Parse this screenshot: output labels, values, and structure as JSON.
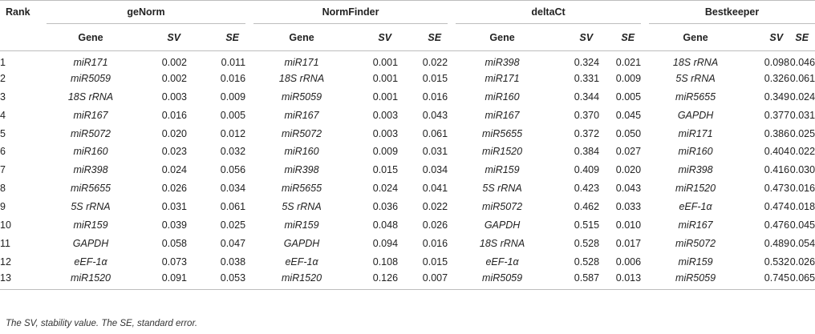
{
  "table": {
    "rank_header": "Rank",
    "methods": [
      {
        "name": "geNorm",
        "cols": [
          "Gene",
          "SV",
          "SE"
        ]
      },
      {
        "name": "NormFinder",
        "cols": [
          "Gene",
          "SV",
          "SE"
        ]
      },
      {
        "name": "deltaCt",
        "cols": [
          "Gene",
          "SV",
          "SE"
        ]
      },
      {
        "name": "Bestkeeper",
        "cols": [
          "Gene",
          "SV",
          "SE"
        ]
      }
    ],
    "rows": [
      [
        "1",
        "miR171",
        "0.002",
        "0.011",
        "miR171",
        "0.001",
        "0.022",
        "miR398",
        "0.324",
        "0.021",
        "18S rRNA",
        "0.098",
        "0.046"
      ],
      [
        "2",
        "miR5059",
        "0.002",
        "0.016",
        "18S rRNA",
        "0.001",
        "0.015",
        "miR171",
        "0.331",
        "0.009",
        "5S rRNA",
        "0.326",
        "0.061"
      ],
      [
        "3",
        "18S rRNA",
        "0.003",
        "0.009",
        "miR5059",
        "0.001",
        "0.016",
        "miR160",
        "0.344",
        "0.005",
        "miR5655",
        "0.349",
        "0.024"
      ],
      [
        "4",
        "miR167",
        "0.016",
        "0.005",
        "miR167",
        "0.003",
        "0.043",
        "miR167",
        "0.370",
        "0.045",
        "GAPDH",
        "0.377",
        "0.031"
      ],
      [
        "5",
        "miR5072",
        "0.020",
        "0.012",
        "miR5072",
        "0.003",
        "0.061",
        "miR5655",
        "0.372",
        "0.050",
        "miR171",
        "0.386",
        "0.025"
      ],
      [
        "6",
        "miR160",
        "0.023",
        "0.032",
        "miR160",
        "0.009",
        "0.031",
        "miR1520",
        "0.384",
        "0.027",
        "miR160",
        "0.404",
        "0.022"
      ],
      [
        "7",
        "miR398",
        "0.024",
        "0.056",
        "miR398",
        "0.015",
        "0.034",
        "miR159",
        "0.409",
        "0.020",
        "miR398",
        "0.416",
        "0.030"
      ],
      [
        "8",
        "miR5655",
        "0.026",
        "0.034",
        "miR5655",
        "0.024",
        "0.041",
        "5S rRNA",
        "0.423",
        "0.043",
        "miR1520",
        "0.473",
        "0.016"
      ],
      [
        "9",
        "5S rRNA",
        "0.031",
        "0.061",
        "5S rRNA",
        "0.036",
        "0.022",
        "miR5072",
        "0.462",
        "0.033",
        "eEF-1α",
        "0.474",
        "0.018"
      ],
      [
        "10",
        "miR159",
        "0.039",
        "0.025",
        "miR159",
        "0.048",
        "0.026",
        "GAPDH",
        "0.515",
        "0.010",
        "miR167",
        "0.476",
        "0.045"
      ],
      [
        "11",
        "GAPDH",
        "0.058",
        "0.047",
        "GAPDH",
        "0.094",
        "0.016",
        "18S rRNA",
        "0.528",
        "0.017",
        "miR5072",
        "0.489",
        "0.054"
      ],
      [
        "12",
        "eEF-1α",
        "0.073",
        "0.038",
        "eEF-1α",
        "0.108",
        "0.015",
        "eEF-1α",
        "0.528",
        "0.006",
        "miR159",
        "0.532",
        "0.026"
      ],
      [
        "13",
        "miR1520",
        "0.091",
        "0.053",
        "miR1520",
        "0.126",
        "0.007",
        "miR5059",
        "0.587",
        "0.013",
        "miR5059",
        "0.745",
        "0.065"
      ]
    ],
    "footnote": "The SV, stability value. The SE, standard error."
  },
  "colors": {
    "text": "#222222",
    "rule": "#bdbdbd"
  }
}
